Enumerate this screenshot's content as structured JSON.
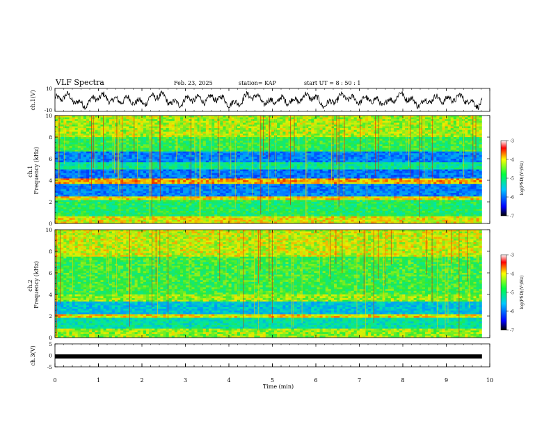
{
  "header": {
    "title": "VLF Spectra",
    "date": "Feb. 23, 2025",
    "station": "station= KAP",
    "start": "start  UT =   8  : 50 : 1"
  },
  "chart_data": [
    {
      "type": "line",
      "name": "ch1-waveform",
      "ylabel": "ch.1(V)",
      "ylim": [
        -10,
        10
      ],
      "yticks": [
        "10",
        "-10"
      ],
      "xlim": [
        0,
        10
      ],
      "series": [
        {
          "color": "#000000"
        }
      ]
    },
    {
      "type": "heatmap",
      "name": "ch1-spectrogram",
      "ylabel": "ch.1\nFrequency (kHz)",
      "ylim": [
        0,
        10
      ],
      "yticks": [
        "0",
        "2",
        "4",
        "6",
        "8",
        "10"
      ],
      "xlim": [
        0,
        10
      ],
      "colorbar": {
        "label": "log(PSD)(V²/Hz)",
        "ticks": [
          "-3",
          "-4",
          "-5",
          "-6",
          "-7"
        ],
        "range": [
          -7,
          -3
        ]
      }
    },
    {
      "type": "heatmap",
      "name": "ch2-spectrogram",
      "ylabel": "ch.2\nFrequency (kHz)",
      "ylim": [
        0,
        10
      ],
      "yticks": [
        "0",
        "2",
        "4",
        "6",
        "8",
        "10"
      ],
      "xlim": [
        0,
        10
      ],
      "colorbar": {
        "label": "log(PSD)(V²/Hz)",
        "ticks": [
          "-3",
          "-4",
          "-5",
          "-6",
          "-7"
        ],
        "range": [
          -7,
          -3
        ]
      }
    },
    {
      "type": "line",
      "name": "ch3-waveform",
      "ylabel": "ch.3(V)",
      "ylim": [
        -5,
        5
      ],
      "yticks": [
        "5",
        "0",
        "-5"
      ],
      "xlim": [
        0,
        10
      ],
      "series": [
        {
          "color": "#000000",
          "value": -0.5
        }
      ]
    }
  ],
  "xaxis": {
    "label": "Time  (min)",
    "ticks": [
      "0",
      "1",
      "2",
      "3",
      "4",
      "5",
      "6",
      "7",
      "8",
      "9",
      "10"
    ]
  }
}
